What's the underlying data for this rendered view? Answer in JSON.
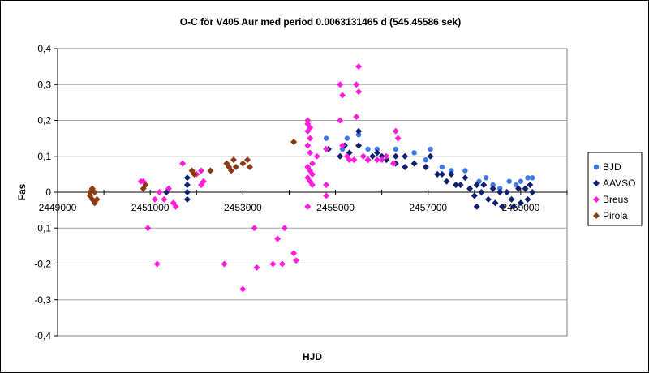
{
  "chart_data": {
    "type": "scatter",
    "title": "O-C för V405 Aur med period 0.0063131465 d (545.45586 sek)",
    "xlabel": "HJD",
    "ylabel": "Fas",
    "xlim": [
      2449000,
      2460000
    ],
    "ylim": [
      -0.4,
      0.4
    ],
    "x_ticks": [
      2449000,
      2451000,
      2453000,
      2455000,
      2457000,
      2459000
    ],
    "x_tick_labels": [
      "2449000",
      "2451000",
      "2453000",
      "2455000",
      "2457000",
      "2459000"
    ],
    "y_ticks": [
      -0.4,
      -0.3,
      -0.2,
      -0.1,
      0,
      0.1,
      0.2,
      0.3,
      0.4
    ],
    "y_tick_labels": [
      "-0,4",
      "-0,3",
      "-0,2",
      "-0,1",
      "0",
      "0,1",
      "0,2",
      "0,3",
      "0,4"
    ],
    "grid": "horizontal",
    "legend_position": "right",
    "series": [
      {
        "name": "BJD",
        "color": "#3F78E6",
        "marker": "circle",
        "points": [
          [
            2454800,
            0.15
          ],
          [
            2455150,
            0.12
          ],
          [
            2455250,
            0.15
          ],
          [
            2455500,
            0.16
          ],
          [
            2455700,
            0.12
          ],
          [
            2455900,
            0.12
          ],
          [
            2456300,
            0.12
          ],
          [
            2456700,
            0.11
          ],
          [
            2456950,
            0.09
          ],
          [
            2457050,
            0.12
          ],
          [
            2457300,
            0.07
          ],
          [
            2457500,
            0.06
          ],
          [
            2457800,
            0.06
          ],
          [
            2458100,
            0.03
          ],
          [
            2458250,
            0.04
          ],
          [
            2458400,
            0.02
          ],
          [
            2458550,
            0.01
          ],
          [
            2458750,
            0.03
          ],
          [
            2458900,
            0.02
          ],
          [
            2459000,
            0.03
          ],
          [
            2459150,
            0.04
          ],
          [
            2459250,
            0.04
          ]
        ]
      },
      {
        "name": "AAVSO",
        "color": "#0E1F6B",
        "marker": "diamond",
        "points": [
          [
            2451350,
            0.0
          ],
          [
            2451800,
            0.0
          ],
          [
            2451800,
            0.02
          ],
          [
            2451800,
            0.04
          ],
          [
            2451800,
            -0.02
          ],
          [
            2454850,
            0.12
          ],
          [
            2455100,
            0.1
          ],
          [
            2455200,
            0.13
          ],
          [
            2455300,
            0.11
          ],
          [
            2455500,
            0.13
          ],
          [
            2455500,
            0.17
          ],
          [
            2455600,
            0.1
          ],
          [
            2455700,
            0.09
          ],
          [
            2455800,
            0.1
          ],
          [
            2455900,
            0.11
          ],
          [
            2456000,
            0.1
          ],
          [
            2456100,
            0.09
          ],
          [
            2456300,
            0.1
          ],
          [
            2456300,
            0.08
          ],
          [
            2456500,
            0.1
          ],
          [
            2456500,
            0.07
          ],
          [
            2456700,
            0.08
          ],
          [
            2456950,
            0.07
          ],
          [
            2457050,
            0.1
          ],
          [
            2457200,
            0.05
          ],
          [
            2457300,
            0.05
          ],
          [
            2457400,
            0.03
          ],
          [
            2457500,
            0.05
          ],
          [
            2457600,
            0.02
          ],
          [
            2457700,
            0.02
          ],
          [
            2457800,
            0.04
          ],
          [
            2457900,
            0.01
          ],
          [
            2458000,
            -0.01
          ],
          [
            2458050,
            0.02
          ],
          [
            2458050,
            -0.04
          ],
          [
            2458150,
            0.0
          ],
          [
            2458200,
            0.02
          ],
          [
            2458300,
            -0.02
          ],
          [
            2458400,
            0.01
          ],
          [
            2458450,
            -0.03
          ],
          [
            2458550,
            0.0
          ],
          [
            2458600,
            -0.04
          ],
          [
            2458700,
            0.0
          ],
          [
            2458800,
            -0.02
          ],
          [
            2458850,
            -0.04
          ],
          [
            2458950,
            0.01
          ],
          [
            2459000,
            -0.03
          ],
          [
            2459100,
            0.01
          ],
          [
            2459150,
            -0.02
          ],
          [
            2459200,
            0.02
          ],
          [
            2459250,
            0.0
          ]
        ]
      },
      {
        "name": "Breus",
        "color": "#FF1ED8",
        "marker": "diamond",
        "points": [
          [
            2450800,
            0.03
          ],
          [
            2450850,
            0.03
          ],
          [
            2450950,
            -0.1
          ],
          [
            2451100,
            -0.02
          ],
          [
            2451150,
            -0.2
          ],
          [
            2451200,
            0.0
          ],
          [
            2451300,
            -0.02
          ],
          [
            2451400,
            0.01
          ],
          [
            2451500,
            -0.03
          ],
          [
            2451550,
            -0.04
          ],
          [
            2451700,
            0.08
          ],
          [
            2452000,
            0.05
          ],
          [
            2452100,
            0.06
          ],
          [
            2452100,
            0.02
          ],
          [
            2452150,
            0.03
          ],
          [
            2452600,
            -0.2
          ],
          [
            2453000,
            -0.27
          ],
          [
            2453250,
            -0.1
          ],
          [
            2453300,
            -0.21
          ],
          [
            2453650,
            -0.2
          ],
          [
            2453750,
            -0.13
          ],
          [
            2453850,
            -0.2
          ],
          [
            2453900,
            -0.1
          ],
          [
            2454100,
            -0.17
          ],
          [
            2454150,
            -0.19
          ],
          [
            2454400,
            0.2
          ],
          [
            2454400,
            0.19
          ],
          [
            2454450,
            0.18
          ],
          [
            2454400,
            0.17
          ],
          [
            2454450,
            0.15
          ],
          [
            2454400,
            0.13
          ],
          [
            2454450,
            0.11
          ],
          [
            2454500,
            0.08
          ],
          [
            2454400,
            0.07
          ],
          [
            2454450,
            0.06
          ],
          [
            2454500,
            0.05
          ],
          [
            2454400,
            0.04
          ],
          [
            2454450,
            0.03
          ],
          [
            2454500,
            0.02
          ],
          [
            2454400,
            -0.04
          ],
          [
            2454600,
            0.1
          ],
          [
            2454800,
            0.12
          ],
          [
            2454800,
            0.02
          ],
          [
            2454800,
            -0.01
          ],
          [
            2455100,
            0.3
          ],
          [
            2455150,
            0.27
          ],
          [
            2455100,
            0.2
          ],
          [
            2455150,
            0.13
          ],
          [
            2455250,
            0.1
          ],
          [
            2455300,
            0.09
          ],
          [
            2455450,
            0.3
          ],
          [
            2455500,
            0.35
          ],
          [
            2455500,
            0.28
          ],
          [
            2455450,
            0.21
          ],
          [
            2455400,
            0.09
          ],
          [
            2455600,
            0.1
          ],
          [
            2455700,
            0.09
          ],
          [
            2455900,
            0.09
          ],
          [
            2456100,
            0.1
          ],
          [
            2456300,
            0.17
          ],
          [
            2456350,
            0.15
          ],
          [
            2456000,
            0.09
          ],
          [
            2456250,
            0.08
          ]
        ]
      },
      {
        "name": "Pirola",
        "color": "#8B3A14",
        "marker": "diamond",
        "points": [
          [
            2449700,
            0.0
          ],
          [
            2449750,
            0.01
          ],
          [
            2449800,
            0.0
          ],
          [
            2449700,
            -0.01
          ],
          [
            2449750,
            -0.02
          ],
          [
            2449800,
            -0.03
          ],
          [
            2449850,
            -0.02
          ],
          [
            2450850,
            0.01
          ],
          [
            2450900,
            0.02
          ],
          [
            2451900,
            0.06
          ],
          [
            2451950,
            0.05
          ],
          [
            2452300,
            0.06
          ],
          [
            2452650,
            0.08
          ],
          [
            2452700,
            0.07
          ],
          [
            2452750,
            0.06
          ],
          [
            2452800,
            0.09
          ],
          [
            2452850,
            0.07
          ],
          [
            2453000,
            0.08
          ],
          [
            2453100,
            0.09
          ],
          [
            2453150,
            0.07
          ],
          [
            2454100,
            0.14
          ]
        ]
      }
    ]
  }
}
